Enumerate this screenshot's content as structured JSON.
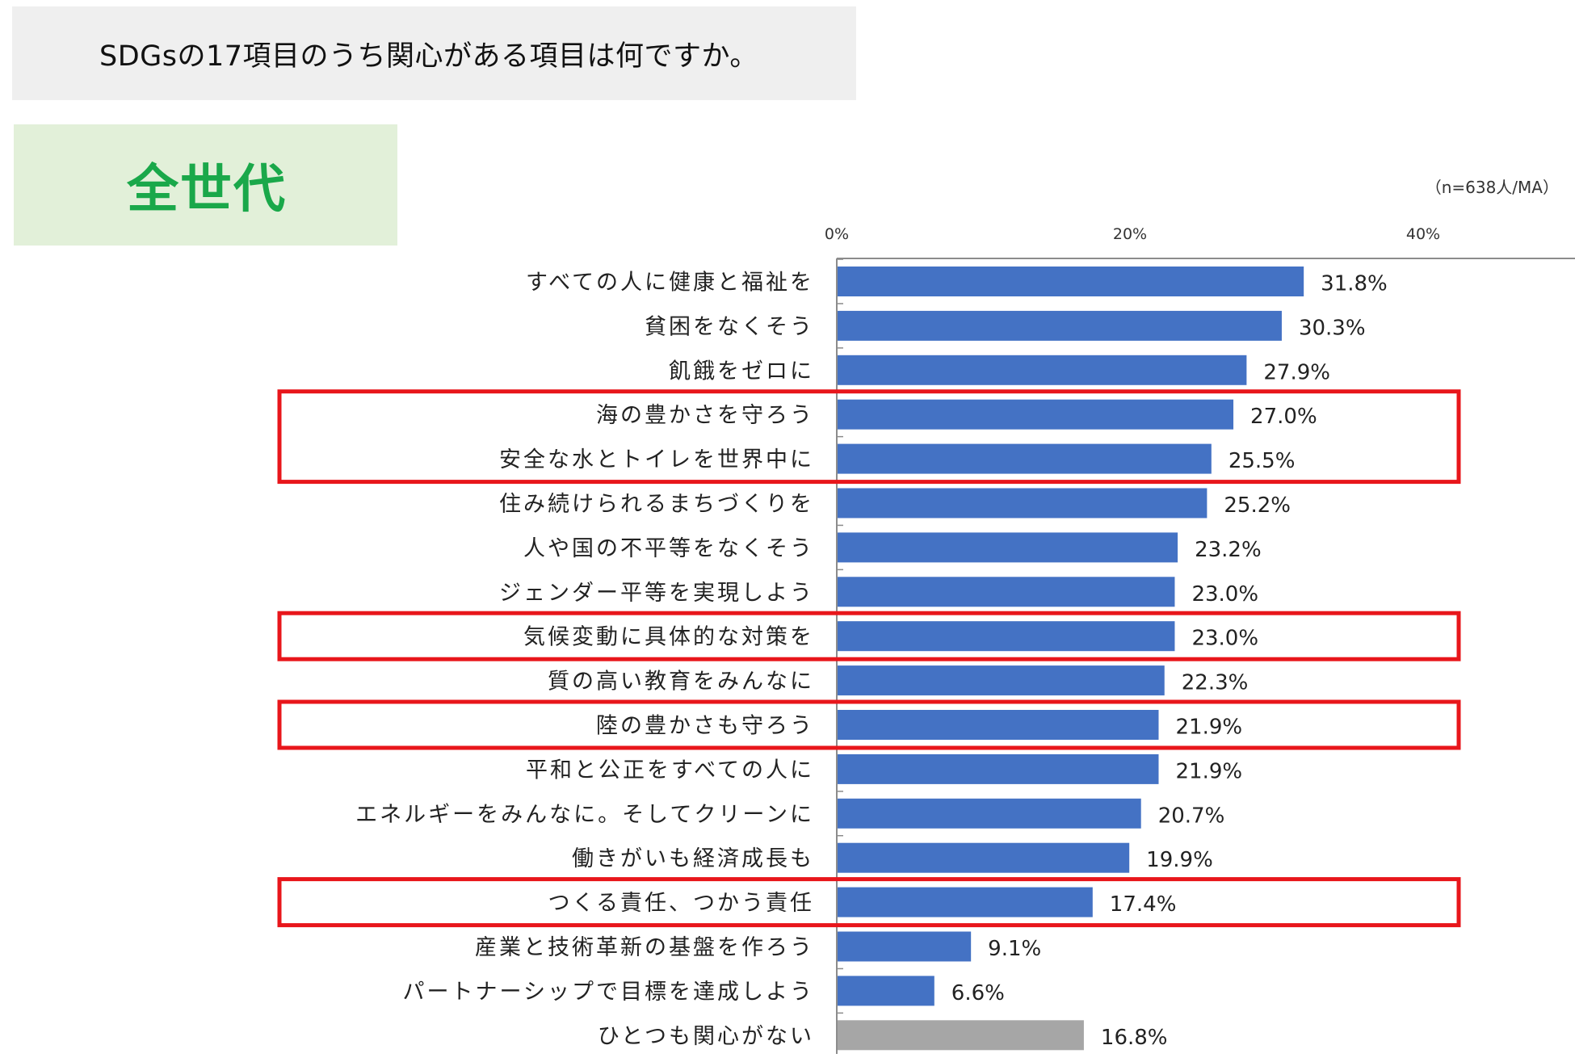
{
  "question": "SDGsの17項目のうち関心がある項目は何ですか。",
  "group_label": "全世代",
  "sample_note": "（n=638人/MA）",
  "colors": {
    "bar": "#4472c4",
    "bar_none": "#a6a6a6",
    "highlight": "#e8161b",
    "question_bg": "#efefef",
    "group_bg": "#e2f0d9",
    "group_text": "#1aa84a"
  },
  "chart_data": {
    "type": "bar",
    "orientation": "horizontal",
    "xlim": [
      0,
      50
    ],
    "ticks": [
      0,
      20,
      40
    ],
    "tick_labels": [
      "0%",
      "20%",
      "40%"
    ],
    "categories": [
      "すべての人に健康と福祉を",
      "貧困をなくそう",
      "飢餓をゼロに",
      "海の豊かさを守ろう",
      "安全な水とトイレを世界中に",
      "住み続けられるまちづくりを",
      "人や国の不平等をなくそう",
      "ジェンダー平等を実現しよう",
      "気候変動に具体的な対策を",
      "質の高い教育をみんなに",
      "陸の豊かさも守ろう",
      "平和と公正をすべての人に",
      "エネルギーをみんなに。そしてクリーンに",
      "働きがいも経済成長も",
      "つくる責任、つかう責任",
      "産業と技術革新の基盤を作ろう",
      "パートナーシップで目標を達成しよう",
      "ひとつも関心がない"
    ],
    "values": [
      31.8,
      30.3,
      27.9,
      27.0,
      25.5,
      25.2,
      23.2,
      23.0,
      23.0,
      22.3,
      21.9,
      21.9,
      20.7,
      19.9,
      17.4,
      9.1,
      6.6,
      16.8
    ],
    "value_labels": [
      "31.8%",
      "30.3%",
      "27.9%",
      "27.0%",
      "25.5%",
      "25.2%",
      "23.2%",
      "23.0%",
      "23.0%",
      "22.3%",
      "21.9%",
      "21.9%",
      "20.7%",
      "19.9%",
      "17.4%",
      "9.1%",
      "6.6%",
      "16.8%"
    ],
    "gray_bars": [
      17
    ],
    "highlight_groups": [
      [
        3,
        4
      ],
      [
        8
      ],
      [
        10
      ],
      [
        14
      ]
    ]
  }
}
